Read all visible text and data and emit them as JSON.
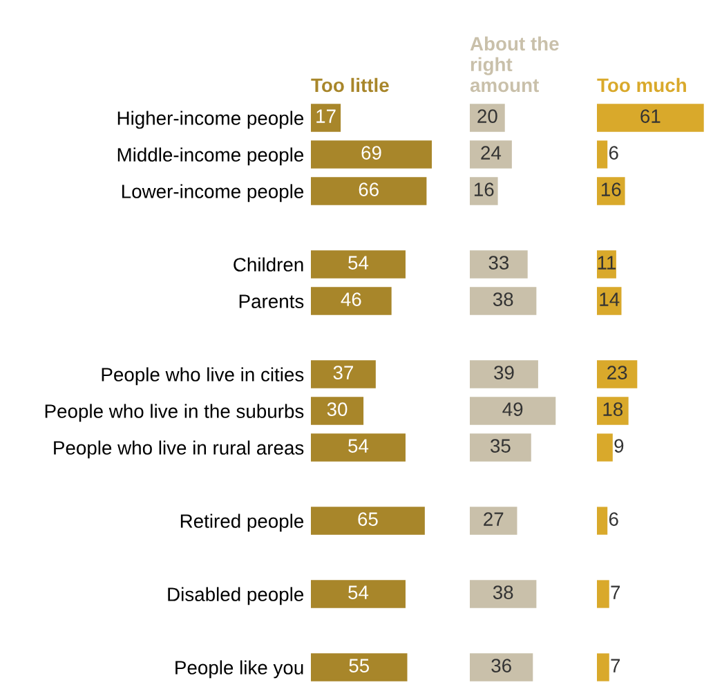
{
  "chart_data": [
    {
      "type": "bar",
      "orientation": "horizontal",
      "title": "Too little",
      "color": "#a8862a",
      "data_labels": true,
      "tick_labels": "y",
      "categories": [
        "Higher-income people",
        "Middle-income people",
        "Lower-income people",
        null,
        "Children",
        "Parents",
        null,
        "People who live in cities",
        "People who live in the suburbs",
        "People who live in rural areas",
        null,
        "Retired people",
        null,
        "Disabled people",
        null,
        "People like you"
      ],
      "values": [
        17,
        69,
        66,
        null,
        54,
        46,
        null,
        37,
        30,
        54,
        null,
        65,
        null,
        54,
        null,
        55
      ]
    },
    {
      "type": "bar",
      "orientation": "horizontal",
      "title": "About the\nright\namount",
      "color": "#c9c0aa",
      "data_labels": true,
      "tick_labels": false,
      "values": [
        20,
        24,
        16,
        null,
        33,
        38,
        null,
        39,
        49,
        35,
        null,
        27,
        null,
        38,
        null,
        36
      ]
    },
    {
      "type": "bar",
      "orientation": "horizontal",
      "title": "Too much",
      "color": "#d9a92b",
      "data_labels": true,
      "tick_labels": false,
      "values": [
        61,
        6,
        16,
        null,
        11,
        14,
        null,
        23,
        18,
        9,
        null,
        6,
        null,
        7,
        null,
        7
      ]
    }
  ]
}
